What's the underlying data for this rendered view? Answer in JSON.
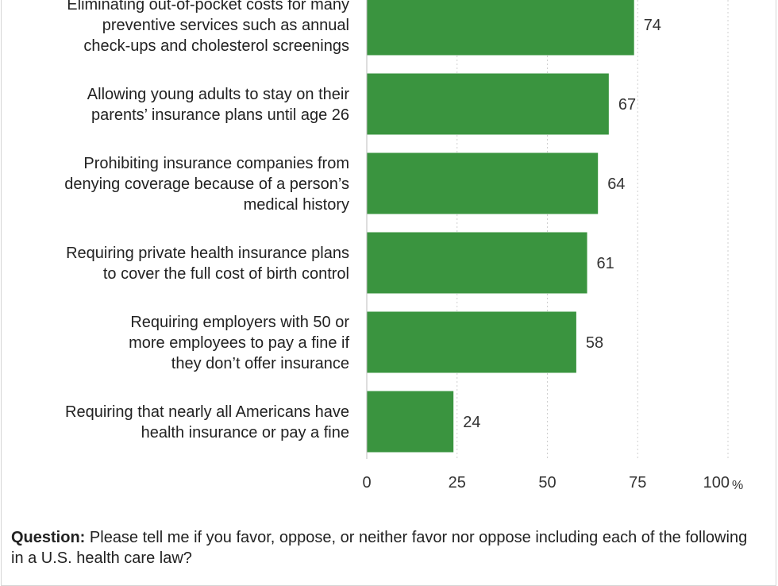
{
  "chart_data": {
    "type": "bar",
    "orientation": "horizontal",
    "categories": [
      "Eliminating out-of-pocket costs for many\npreventive services such as annual\ncheck-ups and cholesterol screenings",
      "Allowing young adults to stay on their\nparents’ insurance plans until age 26",
      "Prohibiting insurance companies from\ndenying coverage because of a person’s\nmedical history",
      "Requiring private health insurance plans\nto cover the full cost of birth control",
      "Requiring employers with 50 or\nmore employees to pay a fine if\nthey don’t offer insurance",
      "Requiring that nearly all Americans have\nhealth insurance or pay a fine"
    ],
    "values": [
      74,
      67,
      64,
      61,
      58,
      24
    ],
    "xlim": [
      0,
      100
    ],
    "xticks": [
      "0",
      "25",
      "50",
      "75",
      "100"
    ],
    "x_unit": "%",
    "bar_color": "#3a943f",
    "grid": true,
    "title": "",
    "xlabel": "",
    "ylabel": ""
  },
  "footnote": {
    "label": "Question:",
    "text": "Please tell me if you favor, oppose, or neither favor nor oppose including each of the following in a U.S. health care law?"
  }
}
